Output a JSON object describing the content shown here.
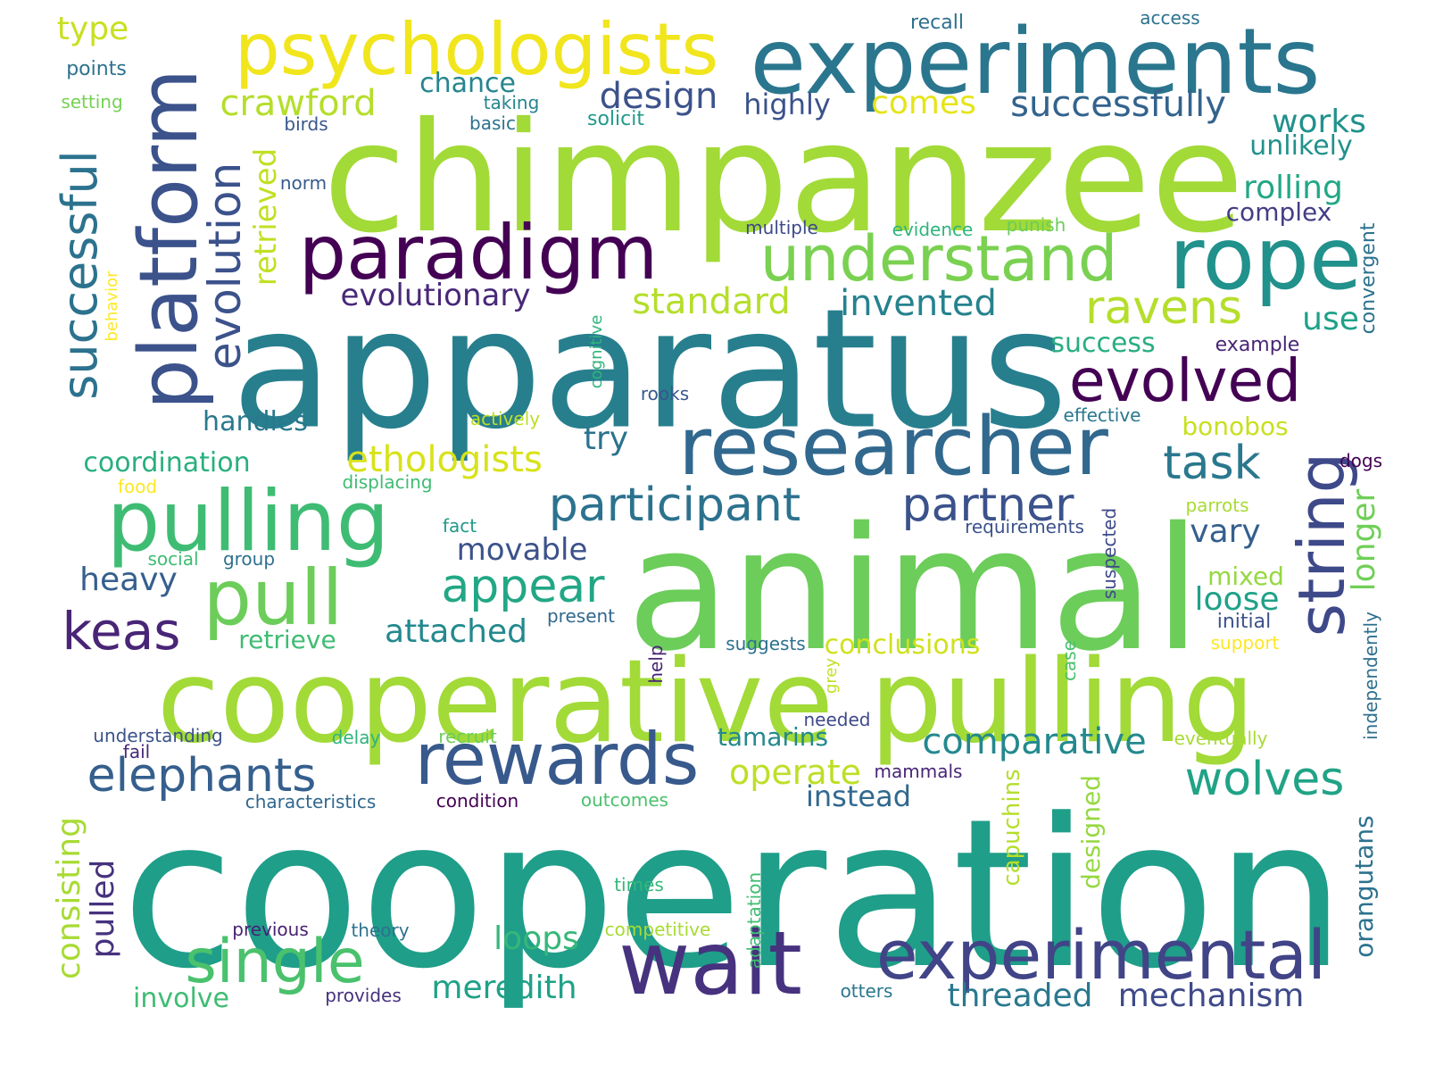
{
  "words": [
    {
      "text": "cooperation",
      "color": "#1f9e89"
    },
    {
      "text": "animal",
      "color": "#6ccd5a"
    },
    {
      "text": "apparatus",
      "color": "#277f8e"
    },
    {
      "text": "chimpanzee",
      "color": "#a2da37"
    },
    {
      "text": "cooperative pulling",
      "color": "#a2da37"
    },
    {
      "text": "experiments",
      "color": "#2a768e"
    },
    {
      "text": "psychologists",
      "color": "#f1e51d"
    },
    {
      "text": "platform",
      "color": "#3b528b"
    },
    {
      "text": "paradigm",
      "color": "#440154"
    },
    {
      "text": "understand",
      "color": "#7ad151"
    },
    {
      "text": "rope",
      "color": "#21918c"
    },
    {
      "text": "pulling",
      "color": "#3fbc73"
    },
    {
      "text": "researcher",
      "color": "#31688e"
    },
    {
      "text": "pull",
      "color": "#6ccd5a"
    },
    {
      "text": "rewards",
      "color": "#38598c"
    },
    {
      "text": "wait",
      "color": "#46327e"
    },
    {
      "text": "experimental",
      "color": "#414487"
    },
    {
      "text": "string",
      "color": "#3e4989"
    },
    {
      "text": "evolved",
      "color": "#440154"
    },
    {
      "text": "single",
      "color": "#4ac16d"
    },
    {
      "text": "successful",
      "color": "#2c728e"
    },
    {
      "text": "evolution",
      "color": "#3b528b"
    },
    {
      "text": "participant",
      "color": "#2c728e"
    },
    {
      "text": "partner",
      "color": "#3b528b"
    },
    {
      "text": "appear",
      "color": "#22a785"
    },
    {
      "text": "elephants",
      "color": "#355f8d"
    },
    {
      "text": "keas",
      "color": "#482576"
    },
    {
      "text": "ravens",
      "color": "#b5de2b"
    },
    {
      "text": "wolves",
      "color": "#20a386"
    },
    {
      "text": "comparative",
      "color": "#23898e"
    },
    {
      "text": "task",
      "color": "#2a788e"
    },
    {
      "text": "design",
      "color": "#3b528b"
    },
    {
      "text": "successfully",
      "color": "#33638d"
    },
    {
      "text": "crawford",
      "color": "#b5de2b"
    },
    {
      "text": "evolutionary",
      "color": "#482878"
    },
    {
      "text": "standard",
      "color": "#b5de2b"
    },
    {
      "text": "invented",
      "color": "#26828e"
    },
    {
      "text": "ethologists",
      "color": "#d8e219"
    },
    {
      "text": "retrieved",
      "color": "#c2df23"
    },
    {
      "text": "highly",
      "color": "#3b528b"
    },
    {
      "text": "comes",
      "color": "#e5e419"
    },
    {
      "text": "works",
      "color": "#21918c"
    },
    {
      "text": "unlikely",
      "color": "#21918c"
    },
    {
      "text": "rolling",
      "color": "#22a785"
    },
    {
      "text": "complex",
      "color": "#433e85"
    },
    {
      "text": "use",
      "color": "#1fa188"
    },
    {
      "text": "success",
      "color": "#28ae80"
    },
    {
      "text": "example",
      "color": "#482576"
    },
    {
      "text": "convergent",
      "color": "#2c728e"
    },
    {
      "text": "try",
      "color": "#2c728e"
    },
    {
      "text": "handles",
      "color": "#2a788e"
    },
    {
      "text": "coordination",
      "color": "#29af7f"
    },
    {
      "text": "movable",
      "color": "#3b528b"
    },
    {
      "text": "heavy",
      "color": "#355f8d"
    },
    {
      "text": "attached",
      "color": "#23898e"
    },
    {
      "text": "retrieve",
      "color": "#3fbc73"
    },
    {
      "text": "conclusions",
      "color": "#d0e11c"
    },
    {
      "text": "operate",
      "color": "#bddf26"
    },
    {
      "text": "tamarins",
      "color": "#23898e"
    },
    {
      "text": "mechanism",
      "color": "#3e4a89"
    },
    {
      "text": "threaded",
      "color": "#2a788e"
    },
    {
      "text": "meredith",
      "color": "#1fa188"
    },
    {
      "text": "loops",
      "color": "#35b779"
    },
    {
      "text": "involve",
      "color": "#3fbc73"
    },
    {
      "text": "consisting",
      "color": "#a8db34"
    },
    {
      "text": "pulled",
      "color": "#46327e"
    },
    {
      "text": "instead",
      "color": "#31688e"
    },
    {
      "text": "loose",
      "color": "#1fa188"
    },
    {
      "text": "vary",
      "color": "#355f8d"
    },
    {
      "text": "longer",
      "color": "#70cf57"
    },
    {
      "text": "mixed",
      "color": "#95d840"
    },
    {
      "text": "bonobos",
      "color": "#c8e020"
    },
    {
      "text": "type",
      "color": "#c8e020"
    },
    {
      "text": "points",
      "color": "#2c728e"
    },
    {
      "text": "setting",
      "color": "#75d054"
    },
    {
      "text": "birds",
      "color": "#39568c"
    },
    {
      "text": "norm",
      "color": "#375b8d"
    },
    {
      "text": "chance",
      "color": "#25858e"
    },
    {
      "text": "taking",
      "color": "#25858e"
    },
    {
      "text": "basic",
      "color": "#2c728e"
    },
    {
      "text": "solicit",
      "color": "#1f9a8a"
    },
    {
      "text": "recall",
      "color": "#2d708e"
    },
    {
      "text": "access",
      "color": "#2c728e"
    },
    {
      "text": "multiple",
      "color": "#3e4989"
    },
    {
      "text": "evidence",
      "color": "#2fb47c"
    },
    {
      "text": "punish",
      "color": "#6ccd5a"
    },
    {
      "text": "behavior",
      "color": "#fde725"
    },
    {
      "text": "cognitive",
      "color": "#2fb47c"
    },
    {
      "text": "rooks",
      "color": "#39568c"
    },
    {
      "text": "actively",
      "color": "#bddf26"
    },
    {
      "text": "effective",
      "color": "#2a788e"
    },
    {
      "text": "dogs",
      "color": "#440154"
    },
    {
      "text": "food",
      "color": "#fde725"
    },
    {
      "text": "displacing",
      "color": "#3fbc73"
    },
    {
      "text": "fact",
      "color": "#1f9a8a"
    },
    {
      "text": "requirements",
      "color": "#3b528b"
    },
    {
      "text": "suspected",
      "color": "#3e4989"
    },
    {
      "text": "parrots",
      "color": "#a8db34"
    },
    {
      "text": "social",
      "color": "#3fbc73"
    },
    {
      "text": "group",
      "color": "#2d708e"
    },
    {
      "text": "present",
      "color": "#31688e"
    },
    {
      "text": "initial",
      "color": "#3b528b"
    },
    {
      "text": "support",
      "color": "#fde725"
    },
    {
      "text": "suggests",
      "color": "#2d708e"
    },
    {
      "text": "help",
      "color": "#482576"
    },
    {
      "text": "grey",
      "color": "#c2df23"
    },
    {
      "text": "case",
      "color": "#4ac16d"
    },
    {
      "text": "independently",
      "color": "#2d708e"
    },
    {
      "text": "understanding",
      "color": "#3b528b"
    },
    {
      "text": "fail",
      "color": "#482878"
    },
    {
      "text": "delay",
      "color": "#2fb47c"
    },
    {
      "text": "recruit",
      "color": "#6ccd5a"
    },
    {
      "text": "needed",
      "color": "#3e4989"
    },
    {
      "text": "eventually",
      "color": "#a8db34"
    },
    {
      "text": "mammals",
      "color": "#482576"
    },
    {
      "text": "capuchins",
      "color": "#b5de2b"
    },
    {
      "text": "designed",
      "color": "#95d840"
    },
    {
      "text": "orangutans",
      "color": "#2c728e"
    },
    {
      "text": "characteristics",
      "color": "#31688e"
    },
    {
      "text": "condition",
      "color": "#440154"
    },
    {
      "text": "outcomes",
      "color": "#4ac16d"
    },
    {
      "text": "times",
      "color": "#35b779"
    },
    {
      "text": "adaptation",
      "color": "#3fbc73"
    },
    {
      "text": "previous",
      "color": "#482173"
    },
    {
      "text": "theory",
      "color": "#2c728e"
    },
    {
      "text": "competitive",
      "color": "#a8db34"
    },
    {
      "text": "provides",
      "color": "#46327e"
    },
    {
      "text": "otters",
      "color": "#2a788e"
    }
  ]
}
